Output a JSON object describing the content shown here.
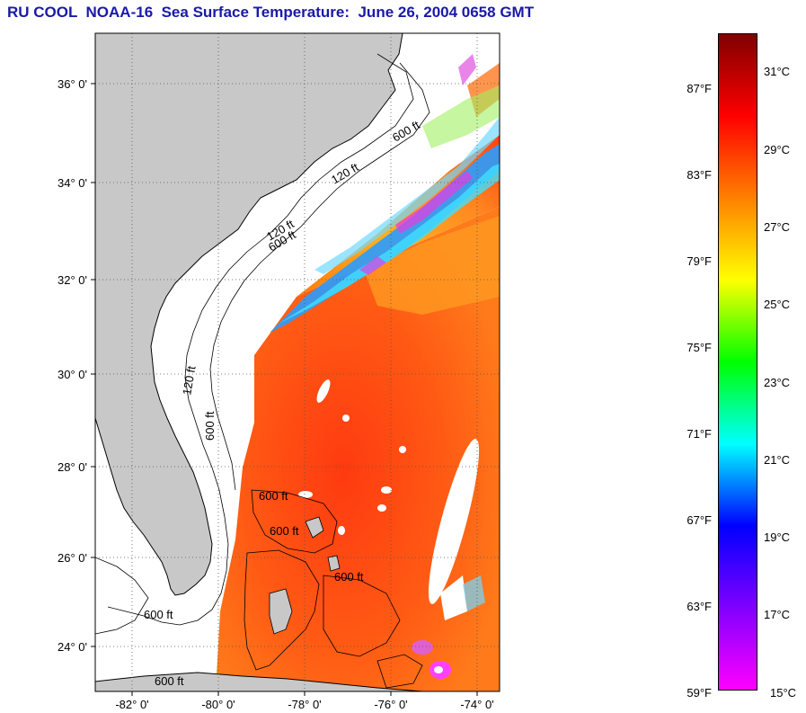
{
  "title": "RU COOL  NOAA-16  Sea Surface Temperature:  June 26, 2004 0658 GMT",
  "map": {
    "lat_ticks": [
      "36° 0'",
      "34° 0'",
      "32° 0'",
      "30° 0'",
      "28° 0'",
      "26° 0'",
      "24° 0'"
    ],
    "lon_ticks": [
      "-82° 0'",
      "-80° 0'",
      "-78° 0'",
      "-76° 0'",
      "-74° 0'"
    ],
    "contour_labels": [
      "120 ft",
      "600 ft",
      "120 ft",
      "600 ft",
      "600 ft",
      "120 ft",
      "600 ft",
      "600 ft",
      "600 ft",
      "600 ft",
      "600 ft"
    ],
    "colors": {
      "land": "#c8c8c8",
      "cloud": "#ffffff",
      "warm": "#ff5a14",
      "cool": "#2a9cff"
    }
  },
  "colorbar": {
    "fahrenheit": [
      "87°F",
      "83°F",
      "79°F",
      "75°F",
      "71°F",
      "67°F",
      "63°F",
      "59°F"
    ],
    "celsius": [
      "31°C",
      "29°C",
      "27°C",
      "25°C",
      "23°C",
      "21°C",
      "19°C",
      "17°C",
      "15°C"
    ],
    "gradient_colors": [
      "#800000",
      "#ff0000",
      "#ff8000",
      "#ffff00",
      "#00ff00",
      "#00ffff",
      "#0000ff",
      "#8000ff",
      "#ff00ff"
    ]
  }
}
